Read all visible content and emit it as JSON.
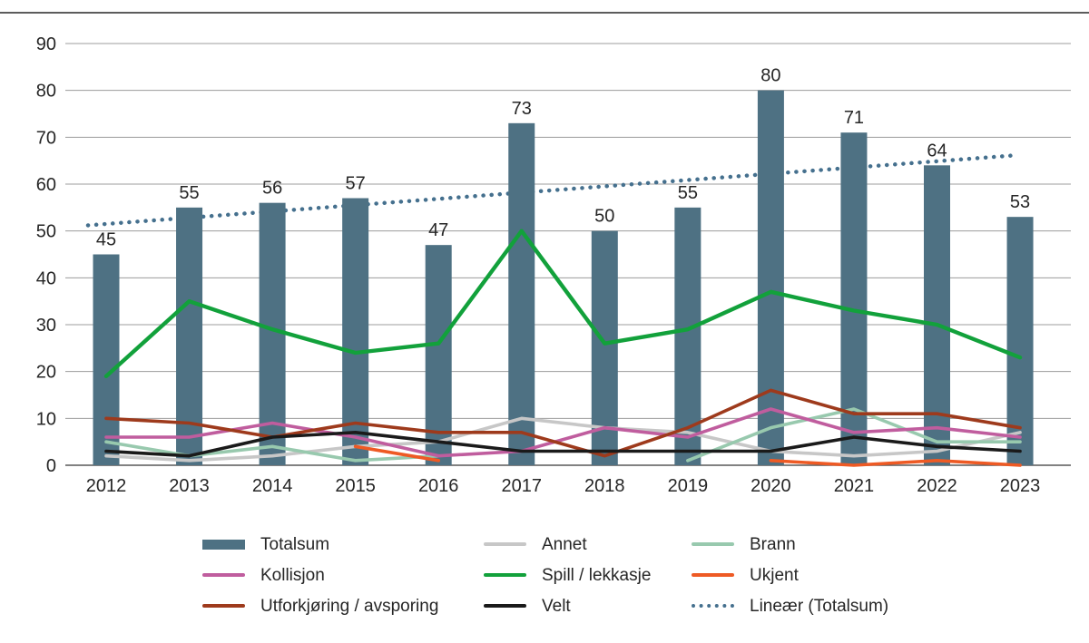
{
  "chart_data": {
    "type": "combo-bar-line",
    "title": "",
    "categories": [
      "2012",
      "2013",
      "2014",
      "2015",
      "2016",
      "2017",
      "2018",
      "2019",
      "2020",
      "2021",
      "2022",
      "2023"
    ],
    "ylim": [
      0,
      90
    ],
    "ytick_step": 10,
    "yticks": [
      0,
      10,
      20,
      30,
      40,
      50,
      60,
      70,
      80,
      90
    ],
    "grid": true,
    "legend_position": "bottom",
    "bar_series": {
      "name": "Totalsum",
      "color": "#4e7183",
      "values": [
        45,
        55,
        56,
        57,
        47,
        73,
        50,
        55,
        80,
        71,
        64,
        53
      ],
      "data_labels_shown": true
    },
    "line_series": [
      {
        "name": "Annet",
        "color": "#c7c7c7",
        "values": [
          2,
          1,
          2,
          4,
          5,
          10,
          8,
          7,
          3,
          2,
          3,
          7
        ]
      },
      {
        "name": "Brann",
        "color": "#98c9ae",
        "values": [
          5,
          2,
          4,
          1,
          2,
          null,
          null,
          1,
          8,
          12,
          5,
          5
        ]
      },
      {
        "name": "Kollisjon",
        "color": "#c05d9e",
        "values": [
          6,
          6,
          9,
          6,
          2,
          3,
          8,
          6,
          12,
          7,
          8,
          6
        ]
      },
      {
        "name": "Ukjent",
        "color": "#ee5a24",
        "values": [
          null,
          null,
          null,
          4,
          1,
          null,
          null,
          null,
          1,
          0,
          1,
          0
        ]
      },
      {
        "name": "Utforkjøring / avsporing",
        "color": "#9e3a1c",
        "values": [
          10,
          9,
          6,
          9,
          7,
          7,
          2,
          8,
          16,
          11,
          11,
          8
        ]
      },
      {
        "name": "Velt",
        "color": "#1a1a1a",
        "values": [
          3,
          2,
          6,
          7,
          5,
          3,
          3,
          3,
          3,
          6,
          4,
          3
        ]
      },
      {
        "name": "Spill / lekkasje",
        "color": "#12a13b",
        "values": [
          19,
          35,
          29,
          24,
          26,
          50,
          26,
          29,
          37,
          33,
          30,
          23
        ]
      }
    ],
    "trend": {
      "name": "Lineær (Totalsum)",
      "color": "#45708e",
      "style": "dotted",
      "start_value": 51.2,
      "end_value": 66.1
    },
    "legend": [
      {
        "label": "Totalsum",
        "swatch": "bar",
        "color": "#4e7183"
      },
      {
        "label": "Annet",
        "swatch": "line",
        "color": "#c7c7c7"
      },
      {
        "label": "Brann",
        "swatch": "line",
        "color": "#98c9ae"
      },
      {
        "label": "Kollisjon",
        "swatch": "line",
        "color": "#c05d9e"
      },
      {
        "label": "Spill / lekkasje",
        "swatch": "line",
        "color": "#12a13b"
      },
      {
        "label": "Ukjent",
        "swatch": "line",
        "color": "#ee5a24"
      },
      {
        "label": "Utforkjøring / avsporing",
        "swatch": "line",
        "color": "#9e3a1c"
      },
      {
        "label": "Velt",
        "swatch": "line",
        "color": "#1a1a1a"
      },
      {
        "label": "Lineær (Totalsum)",
        "swatch": "dotted",
        "color": "#45708e"
      }
    ],
    "colors": {
      "grid_line": "#9c9c9c",
      "zero_line": "#595959",
      "axis_text": "#262626",
      "top_rule": "#262626"
    }
  }
}
